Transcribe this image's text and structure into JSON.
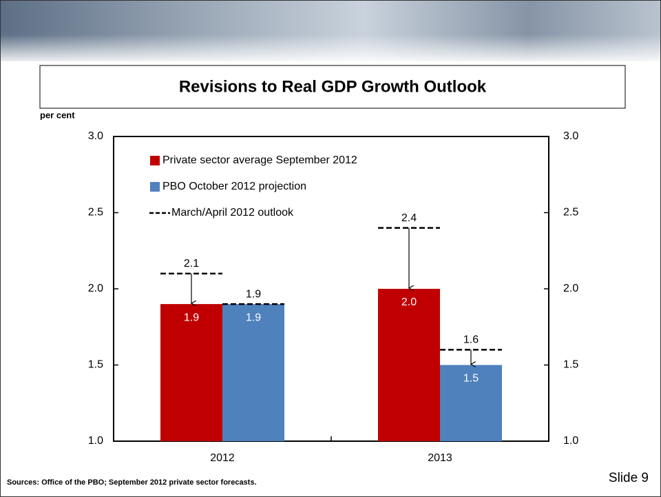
{
  "slide": "Slide 9",
  "sources": "Sources:  Office of the PBO; September 2012 private sector forecasts.",
  "chart_data": {
    "type": "bar",
    "title": "Revisions to Real GDP Growth Outlook",
    "y_label": "per cent",
    "categories": [
      "2012",
      "2013"
    ],
    "series": [
      {
        "name": "Private sector average September 2012",
        "color": "#c00000",
        "values": [
          1.9,
          2.0
        ],
        "value_labels": [
          "1.9",
          "2.0"
        ],
        "outlook_values": [
          2.1,
          2.4
        ]
      },
      {
        "name": "PBO October 2012 projection",
        "color": "#4f81bd",
        "values": [
          1.9,
          1.5
        ],
        "outlook_values": [
          1.9,
          1.6
        ]
      }
    ],
    "outlook_name": "March/April 2012 outlook",
    "ylim": [
      1.0,
      3.0
    ],
    "yticks": [
      {
        "value": 1.0,
        "label": "1.0"
      },
      1.5,
      {
        "value": 2.0,
        "label": "2.0"
      },
      2.5,
      {
        "value": 3.0,
        "label": "3.0"
      }
    ],
    "y2lim": [
      1.0,
      3.0
    ],
    "y2ticks": [
      {
        "value": 1.0,
        "label": "1.0"
      },
      1.5,
      {
        "value": 2.0,
        "label": "2.0"
      },
      2.5,
      {
        "value": 3.0,
        "label": "3.0"
      }
    ]
  }
}
